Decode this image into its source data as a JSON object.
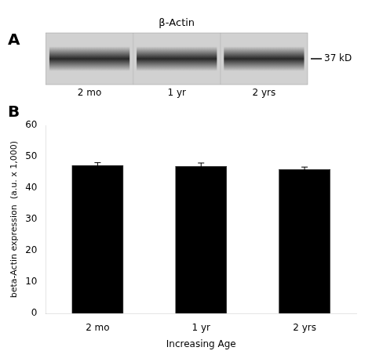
{
  "chart_data": [
    {
      "type": "blot",
      "title": "β-Actin",
      "categories": [
        "2 mo",
        "1 yr",
        "2 yrs"
      ],
      "annotations": [
        "A",
        "37 kD"
      ]
    },
    {
      "type": "bar",
      "categories": [
        "2 mo",
        "1 yr",
        "2 yrs"
      ],
      "values": [
        47.3,
        47.0,
        46.0
      ],
      "errors": [
        0.8,
        1.0,
        0.7
      ],
      "color": "#000000",
      "xlabel": "Increasing Age",
      "ylabel": "beta-Actin expression  (a.u. x 1,000)",
      "ylim": [
        0,
        60
      ],
      "yticks": [
        0,
        10,
        20,
        30,
        40,
        50,
        60
      ],
      "grid": false,
      "annotations": [
        "B"
      ]
    }
  ]
}
